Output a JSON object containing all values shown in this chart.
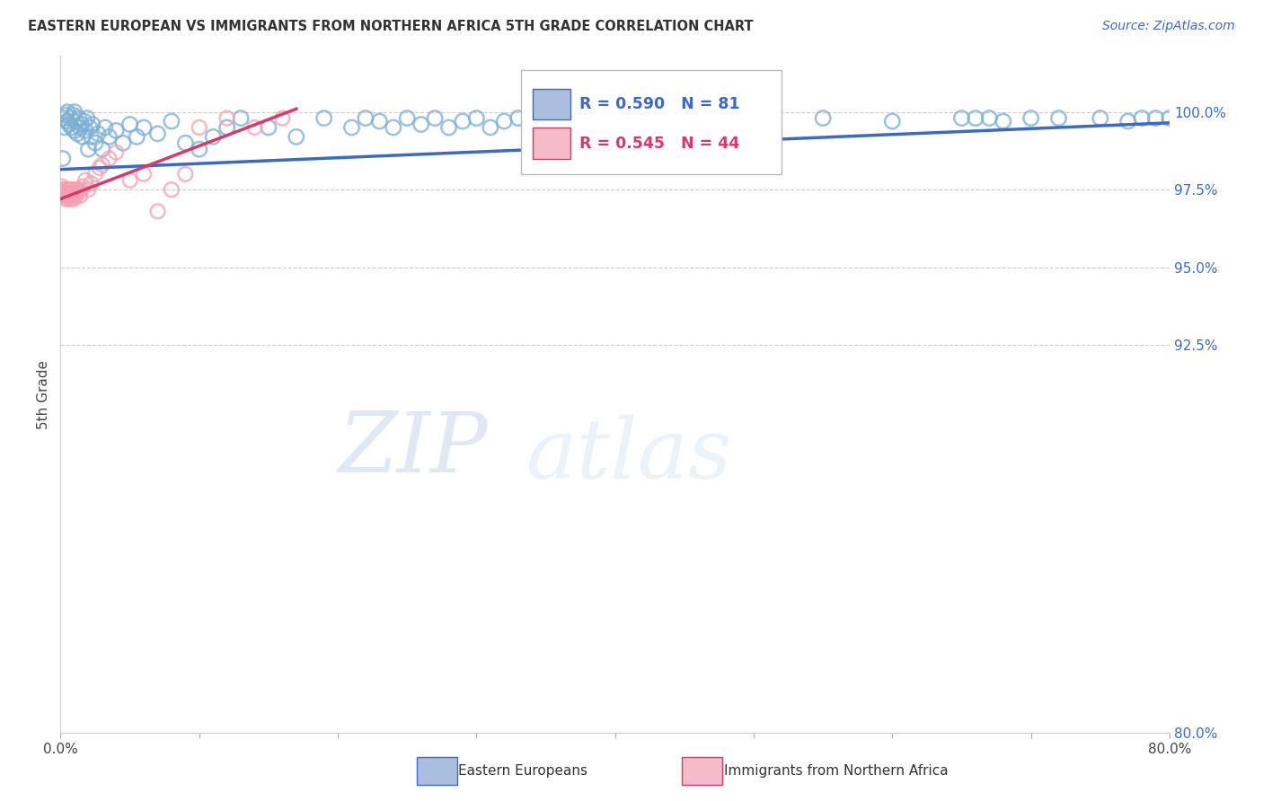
{
  "title": "EASTERN EUROPEAN VS IMMIGRANTS FROM NORTHERN AFRICA 5TH GRADE CORRELATION CHART",
  "source": "Source: ZipAtlas.com",
  "ylabel": "5th Grade",
  "y_right_ticks": [
    80.0,
    92.5,
    95.0,
    97.5,
    100.0
  ],
  "y_right_tick_labels": [
    "80.0%",
    "92.5%",
    "95.0%",
    "97.5%",
    "100.0%"
  ],
  "xlim": [
    0.0,
    80.0
  ],
  "ylim": [
    80.0,
    101.8
  ],
  "blue_R": 0.59,
  "blue_N": 81,
  "pink_R": 0.545,
  "pink_N": 44,
  "blue_color": "#7BAFD4",
  "pink_color": "#F4A0B0",
  "blue_line_color": "#3B6AC4",
  "pink_line_color": "#D43B6A",
  "legend_label_blue": "Eastern Europeans",
  "legend_label_pink": "Immigrants from Northern Africa",
  "blue_x": [
    0.2,
    0.3,
    0.4,
    0.5,
    0.5,
    0.6,
    0.7,
    0.8,
    0.9,
    1.0,
    1.0,
    1.1,
    1.2,
    1.3,
    1.4,
    1.5,
    1.6,
    1.7,
    1.8,
    1.9,
    2.0,
    2.1,
    2.2,
    2.3,
    2.5,
    2.7,
    3.0,
    3.2,
    3.5,
    4.0,
    4.5,
    5.0,
    5.5,
    6.0,
    7.0,
    8.0,
    9.0,
    10.0,
    11.0,
    12.0,
    13.0,
    15.0,
    17.0,
    19.0,
    21.0,
    22.0,
    23.0,
    24.0,
    25.0,
    26.0,
    27.0,
    28.0,
    29.0,
    30.0,
    31.0,
    32.0,
    33.0,
    34.0,
    35.0,
    36.0,
    38.0,
    40.0,
    42.0,
    44.0,
    46.0,
    48.0,
    50.0,
    55.0,
    60.0,
    65.0,
    66.0,
    67.0,
    68.0,
    70.0,
    72.0,
    75.0,
    77.0,
    78.0,
    79.0,
    80.0,
    0.15
  ],
  "blue_y": [
    99.8,
    99.5,
    99.9,
    99.7,
    100.0,
    99.6,
    99.8,
    99.5,
    99.9,
    99.4,
    100.0,
    99.7,
    99.3,
    99.8,
    99.5,
    99.6,
    99.2,
    99.7,
    99.4,
    99.8,
    98.8,
    99.5,
    99.2,
    99.6,
    99.0,
    99.3,
    98.8,
    99.5,
    99.2,
    99.4,
    99.0,
    99.6,
    99.2,
    99.5,
    99.3,
    99.7,
    99.0,
    98.8,
    99.2,
    99.5,
    99.8,
    99.5,
    99.2,
    99.8,
    99.5,
    99.8,
    99.7,
    99.5,
    99.8,
    99.6,
    99.8,
    99.5,
    99.7,
    99.8,
    99.5,
    99.7,
    99.8,
    99.5,
    99.8,
    99.6,
    99.8,
    99.5,
    99.7,
    99.8,
    99.5,
    99.7,
    99.8,
    99.8,
    99.7,
    99.8,
    99.8,
    99.8,
    99.7,
    99.8,
    99.8,
    99.8,
    99.7,
    99.8,
    99.8,
    99.8,
    98.5
  ],
  "pink_x": [
    0.1,
    0.15,
    0.2,
    0.25,
    0.3,
    0.35,
    0.4,
    0.45,
    0.5,
    0.55,
    0.6,
    0.65,
    0.7,
    0.75,
    0.8,
    0.85,
    0.9,
    0.95,
    1.0,
    1.1,
    1.2,
    1.3,
    1.4,
    1.5,
    1.6,
    1.8,
    2.0,
    2.2,
    2.5,
    2.8,
    3.0,
    3.5,
    4.0,
    5.0,
    6.0,
    7.0,
    8.0,
    9.0,
    10.0,
    12.0,
    14.0,
    16.0,
    0.12,
    0.18
  ],
  "pink_y": [
    97.6,
    97.4,
    97.5,
    97.3,
    97.5,
    97.2,
    97.4,
    97.3,
    97.5,
    97.2,
    97.4,
    97.3,
    97.5,
    97.2,
    97.4,
    97.3,
    97.5,
    97.2,
    97.4,
    97.3,
    97.5,
    97.4,
    97.3,
    97.5,
    97.6,
    97.8,
    97.5,
    97.7,
    98.0,
    98.2,
    98.3,
    98.5,
    98.7,
    97.8,
    98.0,
    96.8,
    97.5,
    98.0,
    99.5,
    99.8,
    99.5,
    99.8,
    97.4,
    97.3
  ],
  "blue_trend": [
    0.0,
    80.0,
    98.15,
    99.65
  ],
  "pink_trend": [
    0.0,
    17.0,
    97.2,
    100.1
  ]
}
